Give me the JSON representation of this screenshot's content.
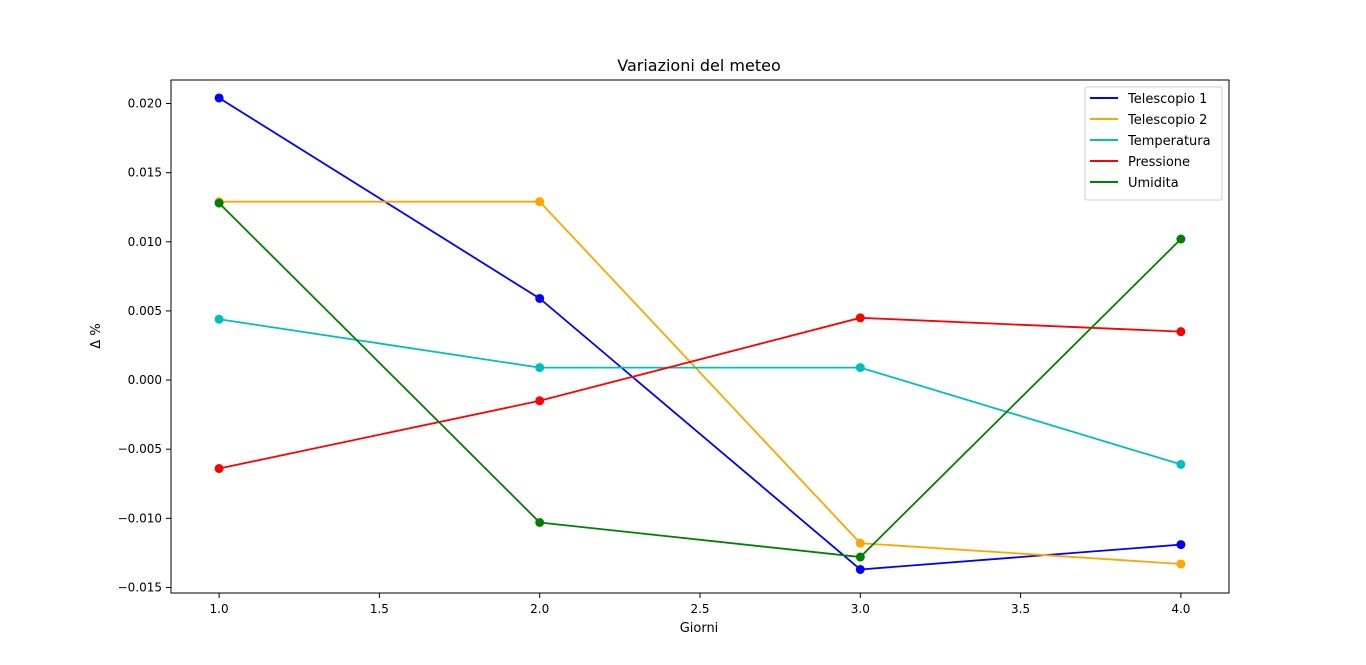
{
  "chart_data": {
    "type": "line",
    "title": "Variazioni del meteo",
    "xlabel": "Giorni",
    "ylabel": "Δ %",
    "xlim": [
      0.85,
      4.15
    ],
    "ylim": [
      -0.0154,
      0.0217
    ],
    "xticks": [
      1.0,
      1.5,
      2.0,
      2.5,
      3.0,
      3.5,
      4.0
    ],
    "xtick_labels": [
      "1.0",
      "1.5",
      "2.0",
      "2.5",
      "3.0",
      "3.5",
      "4.0"
    ],
    "yticks": [
      -0.015,
      -0.01,
      -0.005,
      0.0,
      0.005,
      0.01,
      0.015,
      0.02
    ],
    "ytick_labels": [
      "−0.015",
      "−0.010",
      "−0.005",
      "0.000",
      "0.005",
      "0.010",
      "0.015",
      "0.020"
    ],
    "x": [
      1,
      2,
      3,
      4
    ],
    "grid": false,
    "legend_position": "top-right",
    "series": [
      {
        "name": "Telescopio 1",
        "color": "#0000ff",
        "values": [
          0.0204,
          0.0059,
          -0.0137,
          -0.0119
        ]
      },
      {
        "name": "Telescopio 2",
        "color": "#ffa500",
        "values": [
          0.0129,
          0.0129,
          -0.0118,
          -0.0133
        ]
      },
      {
        "name": "Temperatura",
        "color": "#00bfbf",
        "values": [
          0.0044,
          0.0009,
          0.0009,
          -0.0061
        ]
      },
      {
        "name": "Pressione",
        "color": "#ff0000",
        "values": [
          -0.0064,
          -0.0015,
          0.0045,
          0.0035
        ]
      },
      {
        "name": "Umidita",
        "color": "#008000",
        "values": [
          0.0128,
          -0.0103,
          -0.0128,
          0.0102
        ]
      }
    ]
  }
}
